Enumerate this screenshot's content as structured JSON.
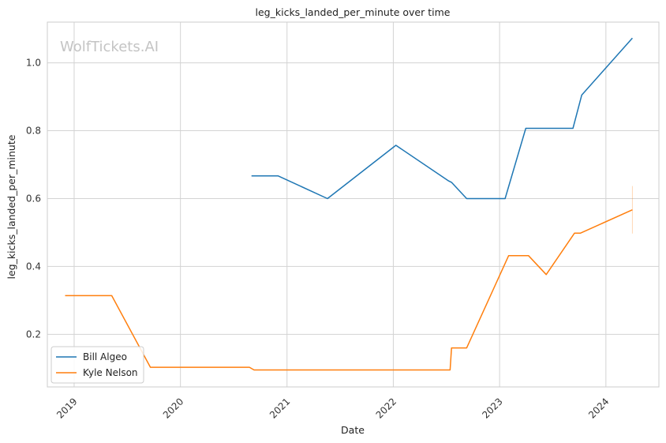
{
  "chart_data": {
    "type": "line",
    "title": "leg_kicks_landed_per_minute over time",
    "xlabel": "Date",
    "ylabel": "leg_kicks_landed_per_minute",
    "watermark": "WolfTickets.AI",
    "x_axis": {
      "type": "date",
      "range": [
        "2018-10-01",
        "2024-07-01"
      ],
      "tick_labels": [
        "2019",
        "2020",
        "2021",
        "2022",
        "2023",
        "2024"
      ]
    },
    "y_axis": {
      "range": [
        0.045,
        1.12
      ],
      "ticks": [
        0.2,
        0.4,
        0.6,
        0.8,
        1.0
      ],
      "tick_labels": [
        "0.2",
        "0.4",
        "0.6",
        "0.8",
        "1.0"
      ]
    },
    "grid": true,
    "legend": {
      "placement": "bottom-left"
    },
    "colors": {
      "Bill Algeo": "#1f77b4",
      "Kyle Nelson": "#ff7f0e",
      "grid": "#d3d3d3",
      "spine": "#cccccc"
    },
    "series": [
      {
        "name": "Bill Algeo",
        "points": [
          [
            "2020-09-01",
            0.667
          ],
          [
            "2020-12-01",
            0.667
          ],
          [
            "2021-05-20",
            0.6
          ],
          [
            "2022-01-10",
            0.757
          ],
          [
            "2022-07-10",
            0.652
          ],
          [
            "2022-07-20",
            0.648
          ],
          [
            "2022-09-10",
            0.6
          ],
          [
            "2023-01-20",
            0.6
          ],
          [
            "2023-04-01",
            0.807
          ],
          [
            "2023-09-10",
            0.807
          ],
          [
            "2023-10-10",
            0.905
          ],
          [
            "2024-04-01",
            1.073
          ]
        ]
      },
      {
        "name": "Kyle Nelson",
        "points": [
          [
            "2018-12-01",
            0.314
          ],
          [
            "2019-05-10",
            0.314
          ],
          [
            "2019-09-20",
            0.103
          ],
          [
            "2020-08-25",
            0.103
          ],
          [
            "2020-09-10",
            0.095
          ],
          [
            "2022-07-15",
            0.095
          ],
          [
            "2022-07-20",
            0.16
          ],
          [
            "2022-09-10",
            0.16
          ],
          [
            "2023-02-01",
            0.432
          ],
          [
            "2023-04-10",
            0.432
          ],
          [
            "2023-06-10",
            0.376
          ],
          [
            "2023-09-15",
            0.498
          ],
          [
            "2023-10-05",
            0.498
          ],
          [
            "2024-04-01",
            0.567
          ]
        ],
        "error_bar": {
          "date": "2024-04-01",
          "low": 0.497,
          "high": 0.637
        }
      }
    ]
  }
}
